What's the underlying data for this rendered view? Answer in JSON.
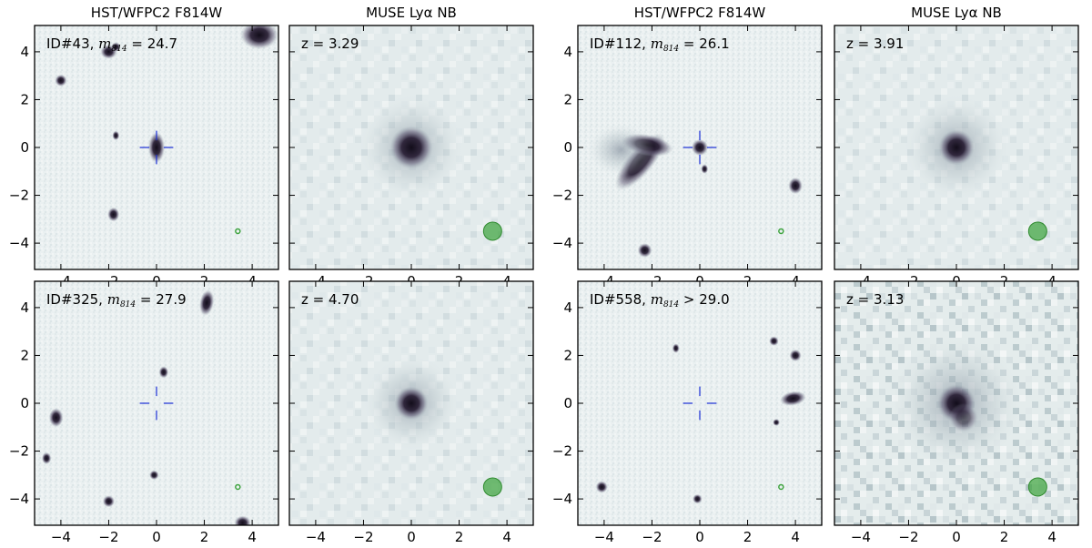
{
  "figure": {
    "column_titles": [
      "HST/WFPC2 F814W",
      "MUSE Lyα NB",
      "HST/WFPC2 F814W",
      "MUSE Lyα NB"
    ],
    "axis_ticks": {
      "x": [
        -4,
        -2,
        0,
        2,
        4
      ],
      "y": [
        4,
        2,
        0,
        -2,
        -4
      ],
      "range": [
        -5.1,
        5.1
      ]
    },
    "colors": {
      "hst_background": "#e9eff0",
      "muse_background": "#e2ebec",
      "source_dark": "#1b1522",
      "crosshair": "#1b2fd6",
      "psf": "#3fa43f"
    },
    "objects": [
      {
        "id_text": "ID#43, ",
        "mag_label": "m",
        "mag_sub": "814",
        "mag_value": " = 24.7",
        "redshift": "z = 3.29"
      },
      {
        "id_text": "ID#112, ",
        "mag_label": "m",
        "mag_sub": "814",
        "mag_value": " = 26.1",
        "redshift": "z = 3.91"
      },
      {
        "id_text": "ID#325, ",
        "mag_label": "m",
        "mag_sub": "814",
        "mag_value": " = 27.9",
        "redshift": "z = 4.70"
      },
      {
        "id_text": "ID#558, ",
        "mag_label": "m",
        "mag_sub": "814",
        "mag_value": " > 29.0",
        "redshift": "z = 3.13"
      }
    ]
  }
}
